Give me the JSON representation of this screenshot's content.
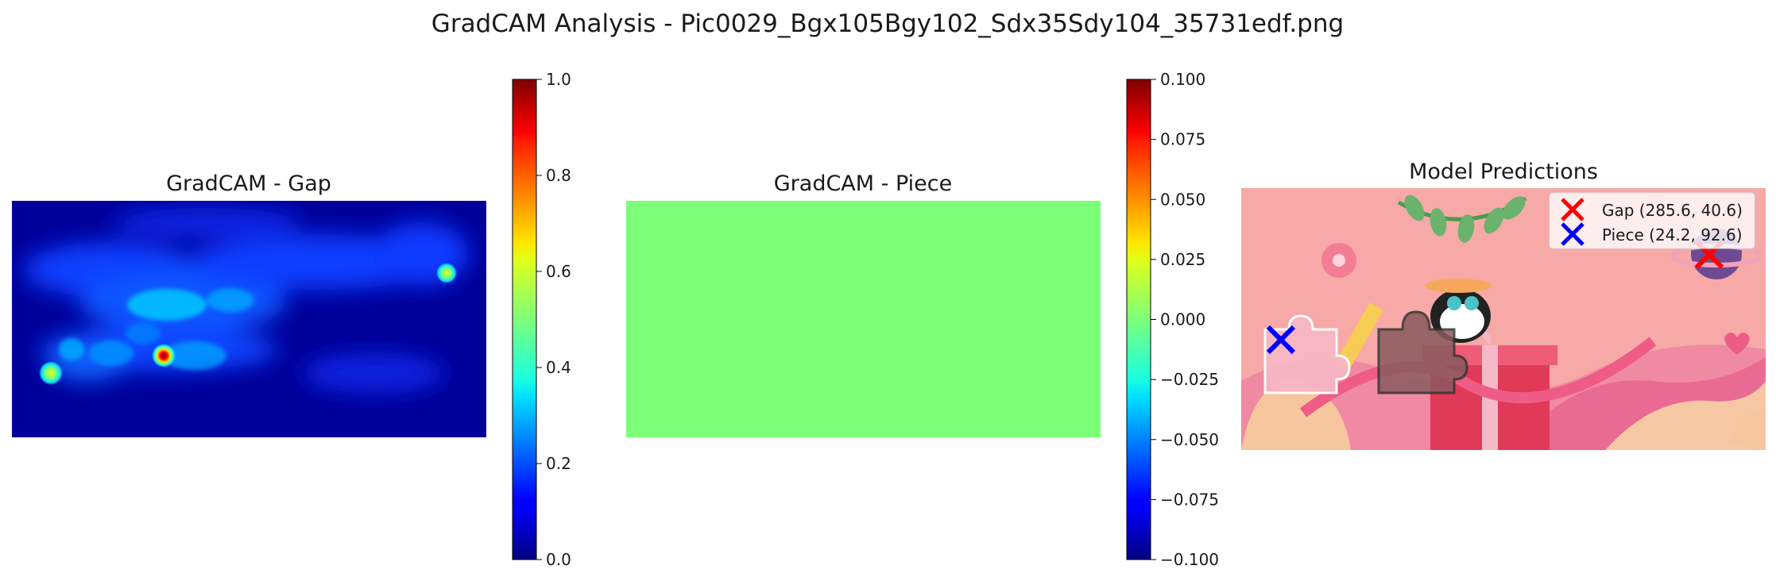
{
  "figure": {
    "title": "GradCAM Analysis - Pic0029_Bgx105Bgy102_Sdx35Sdy104_35731edf.png"
  },
  "chart_data": [
    {
      "type": "heatmap",
      "title": "GradCAM - Gap",
      "colormap": "jet",
      "colorbar": {
        "range": [
          0.0,
          1.0
        ],
        "ticks": [
          "0.0",
          "0.2",
          "0.4",
          "0.6",
          "0.8",
          "1.0"
        ]
      },
      "hotspots": [
        {
          "x": 0.32,
          "y": 0.65,
          "value": 1.0
        },
        {
          "x": 0.09,
          "y": 0.73,
          "value": 0.55
        },
        {
          "x": 0.92,
          "y": 0.3,
          "value": 0.62
        },
        {
          "x": 0.3,
          "y": 0.45,
          "value": 0.38
        },
        {
          "x": 0.45,
          "y": 0.42,
          "value": 0.35
        },
        {
          "x": 0.14,
          "y": 0.64,
          "value": 0.33
        },
        {
          "x": 0.22,
          "y": 0.62,
          "value": 0.3
        },
        {
          "x": 0.4,
          "y": 0.67,
          "value": 0.32
        },
        {
          "x": 0.6,
          "y": 0.33,
          "value": 0.26
        },
        {
          "x": 0.72,
          "y": 0.3,
          "value": 0.24
        },
        {
          "x": 0.85,
          "y": 0.82,
          "value": 0.22
        }
      ],
      "base_value": 0.05
    },
    {
      "type": "heatmap",
      "title": "GradCAM - Piece",
      "colormap": "jet",
      "uniform_value": 0.0,
      "uniform_color": "#7dff7a",
      "colorbar": {
        "range": [
          -0.1,
          0.1
        ],
        "ticks": [
          "−0.100",
          "−0.075",
          "−0.050",
          "−0.025",
          "0.000",
          "0.025",
          "0.050",
          "0.075",
          "0.100"
        ]
      }
    },
    {
      "type": "scatter",
      "title": "Model Predictions",
      "xlim": [
        0,
        320
      ],
      "ylim": [
        160,
        0
      ],
      "series": [
        {
          "name": "Gap (285.6, 40.6)",
          "x": 285.6,
          "y": 40.6,
          "color": "#ff0000",
          "marker": "x"
        },
        {
          "name": "Piece (24.2, 92.6)",
          "x": 24.2,
          "y": 92.6,
          "color": "#0000ff",
          "marker": "x"
        }
      ]
    }
  ]
}
